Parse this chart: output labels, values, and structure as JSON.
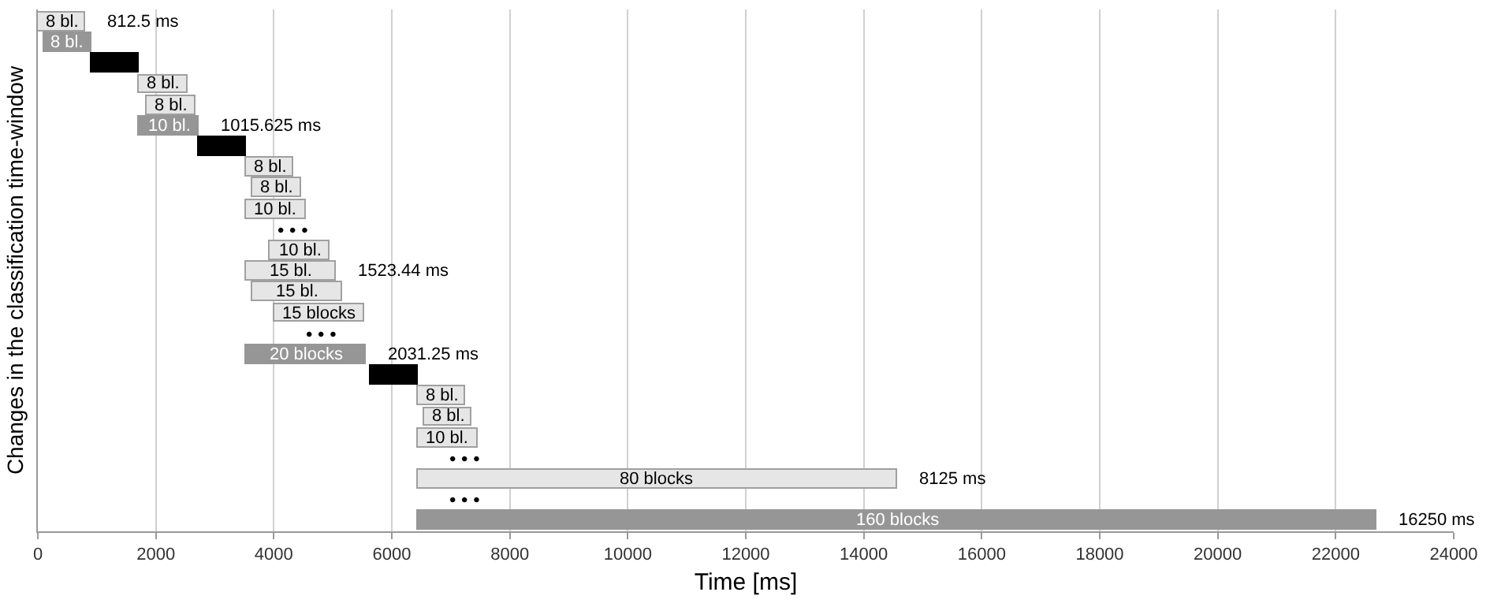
{
  "chart_data": {
    "type": "bar",
    "orientation": "horizontal",
    "xlabel": "Time [ms]",
    "ylabel": "Changes in the classification time-window",
    "categories": [
      null,
      null,
      null,
      null,
      null,
      null,
      null,
      null,
      null,
      null,
      null,
      null,
      null,
      null,
      null,
      null,
      null,
      null,
      null,
      null,
      null,
      null,
      null,
      null,
      null
    ],
    "base": [
      0,
      100,
      900,
      1720,
      1850,
      1720,
      2720,
      3530,
      3640,
      3520,
      null,
      3930,
      3530,
      3640,
      4010,
      null,
      3530,
      5640,
      6440,
      6550,
      6440,
      null,
      6440,
      null,
      6450
    ],
    "values": [
      812.5,
      812.5,
      800,
      812.5,
      812.5,
      1015.625,
      800,
      812.5,
      812.5,
      1015.625,
      null,
      1015.625,
      1523.44,
      1523.44,
      1523.44,
      null,
      2031.25,
      800,
      812.5,
      812.5,
      1015.625,
      null,
      8125,
      null,
      16250
    ],
    "value_labels": [
      null,
      null,
      null,
      null,
      null,
      null,
      null,
      null,
      null,
      null,
      "• • •",
      null,
      null,
      null,
      null,
      "• • •",
      null,
      null,
      null,
      null,
      null,
      "• • •",
      null,
      "• • •",
      null
    ],
    "colors": [
      "#e6e6e6",
      "#969696",
      "#000000",
      "#e6e6e6",
      "#e6e6e6",
      "#969696",
      "#000000",
      "#e6e6e6",
      "#e6e6e6",
      "#e6e6e6",
      "#e6e6e6",
      "#e6e6e6",
      "#e6e6e6",
      "#e6e6e6",
      "#e6e6e6",
      "#e6e6e6",
      "#969696",
      "#000000",
      "#e6e6e6",
      "#e6e6e6",
      "#e6e6e6",
      "#e6e6e6",
      "#e6e6e6",
      "#e6e6e6",
      "#969696"
    ],
    "annotations": [
      {
        "text": "812.5 ms",
        "x": 812.5
      },
      {
        "text": "1015.625 ms",
        "x": 2735.625
      },
      {
        "text": "1523.44 ms",
        "x": 5053.44
      },
      {
        "text": "2031.25 ms",
        "x": 5561.25
      },
      {
        "text": "8125 ms",
        "x": 14565
      },
      {
        "text": "16250 ms",
        "x": 22700
      },
      {
        "text": "8 bl.",
        "x": 406.25
      },
      {
        "text": "8 bl.",
        "x": 506.25
      },
      {
        "text": "8 bl.",
        "x": 2126.25
      },
      {
        "text": "8 bl.",
        "x": 2256.25
      },
      {
        "text": "10 bl.",
        "x": 2227.8125
      },
      {
        "text": "8 bl.",
        "x": 3936.25
      },
      {
        "text": "8 bl.",
        "x": 4046.25
      },
      {
        "text": "10 bl.",
        "x": 4027.8125
      },
      {
        "text": "10 bl.",
        "x": 4437.8125
      },
      {
        "text": "15 bl.",
        "x": 4291.72
      },
      {
        "text": "15 bl.",
        "x": 4401.72
      },
      {
        "text": "15 blocks",
        "x": 4771.72
      },
      {
        "text": "20 blocks",
        "x": 4545.625
      },
      {
        "text": "8 bl.",
        "x": 6846.25
      },
      {
        "text": "8 bl.",
        "x": 6956.25
      },
      {
        "text": "10 bl.",
        "x": 6947.8125
      },
      {
        "text": "80 blocks",
        "x": 10502.5
      },
      {
        "text": "160 blocks",
        "x": 14575
      }
    ],
    "xlim": [
      0,
      24000
    ],
    "xticks": [
      0,
      2000,
      4000,
      6000,
      8000,
      10000,
      12000,
      14000,
      16000,
      18000,
      20000,
      22000,
      24000
    ],
    "tick_labels": "x",
    "grid": "x"
  }
}
